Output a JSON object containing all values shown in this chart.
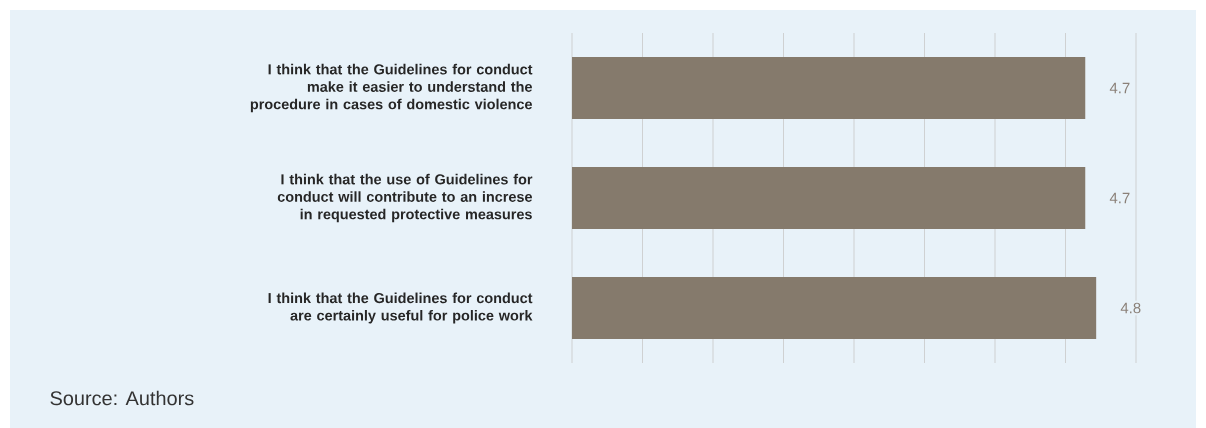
{
  "chart_data": {
    "type": "bar",
    "orientation": "horizontal",
    "data_labels": true,
    "categories": [
      "I think that the Guidelines for conduct make it easier to understand the procedure in cases of domestic violence",
      "I think that the use of Guidelines for conduct will contribute to an increse in requested protective measures",
      "I think that the Guidelines for conduct are certainly useful for police work"
    ],
    "values": [
      4.7,
      4.7,
      4.8
    ],
    "color": "#857a6c",
    "grid": "x",
    "annotations": [
      "Source: Authors"
    ]
  }
}
